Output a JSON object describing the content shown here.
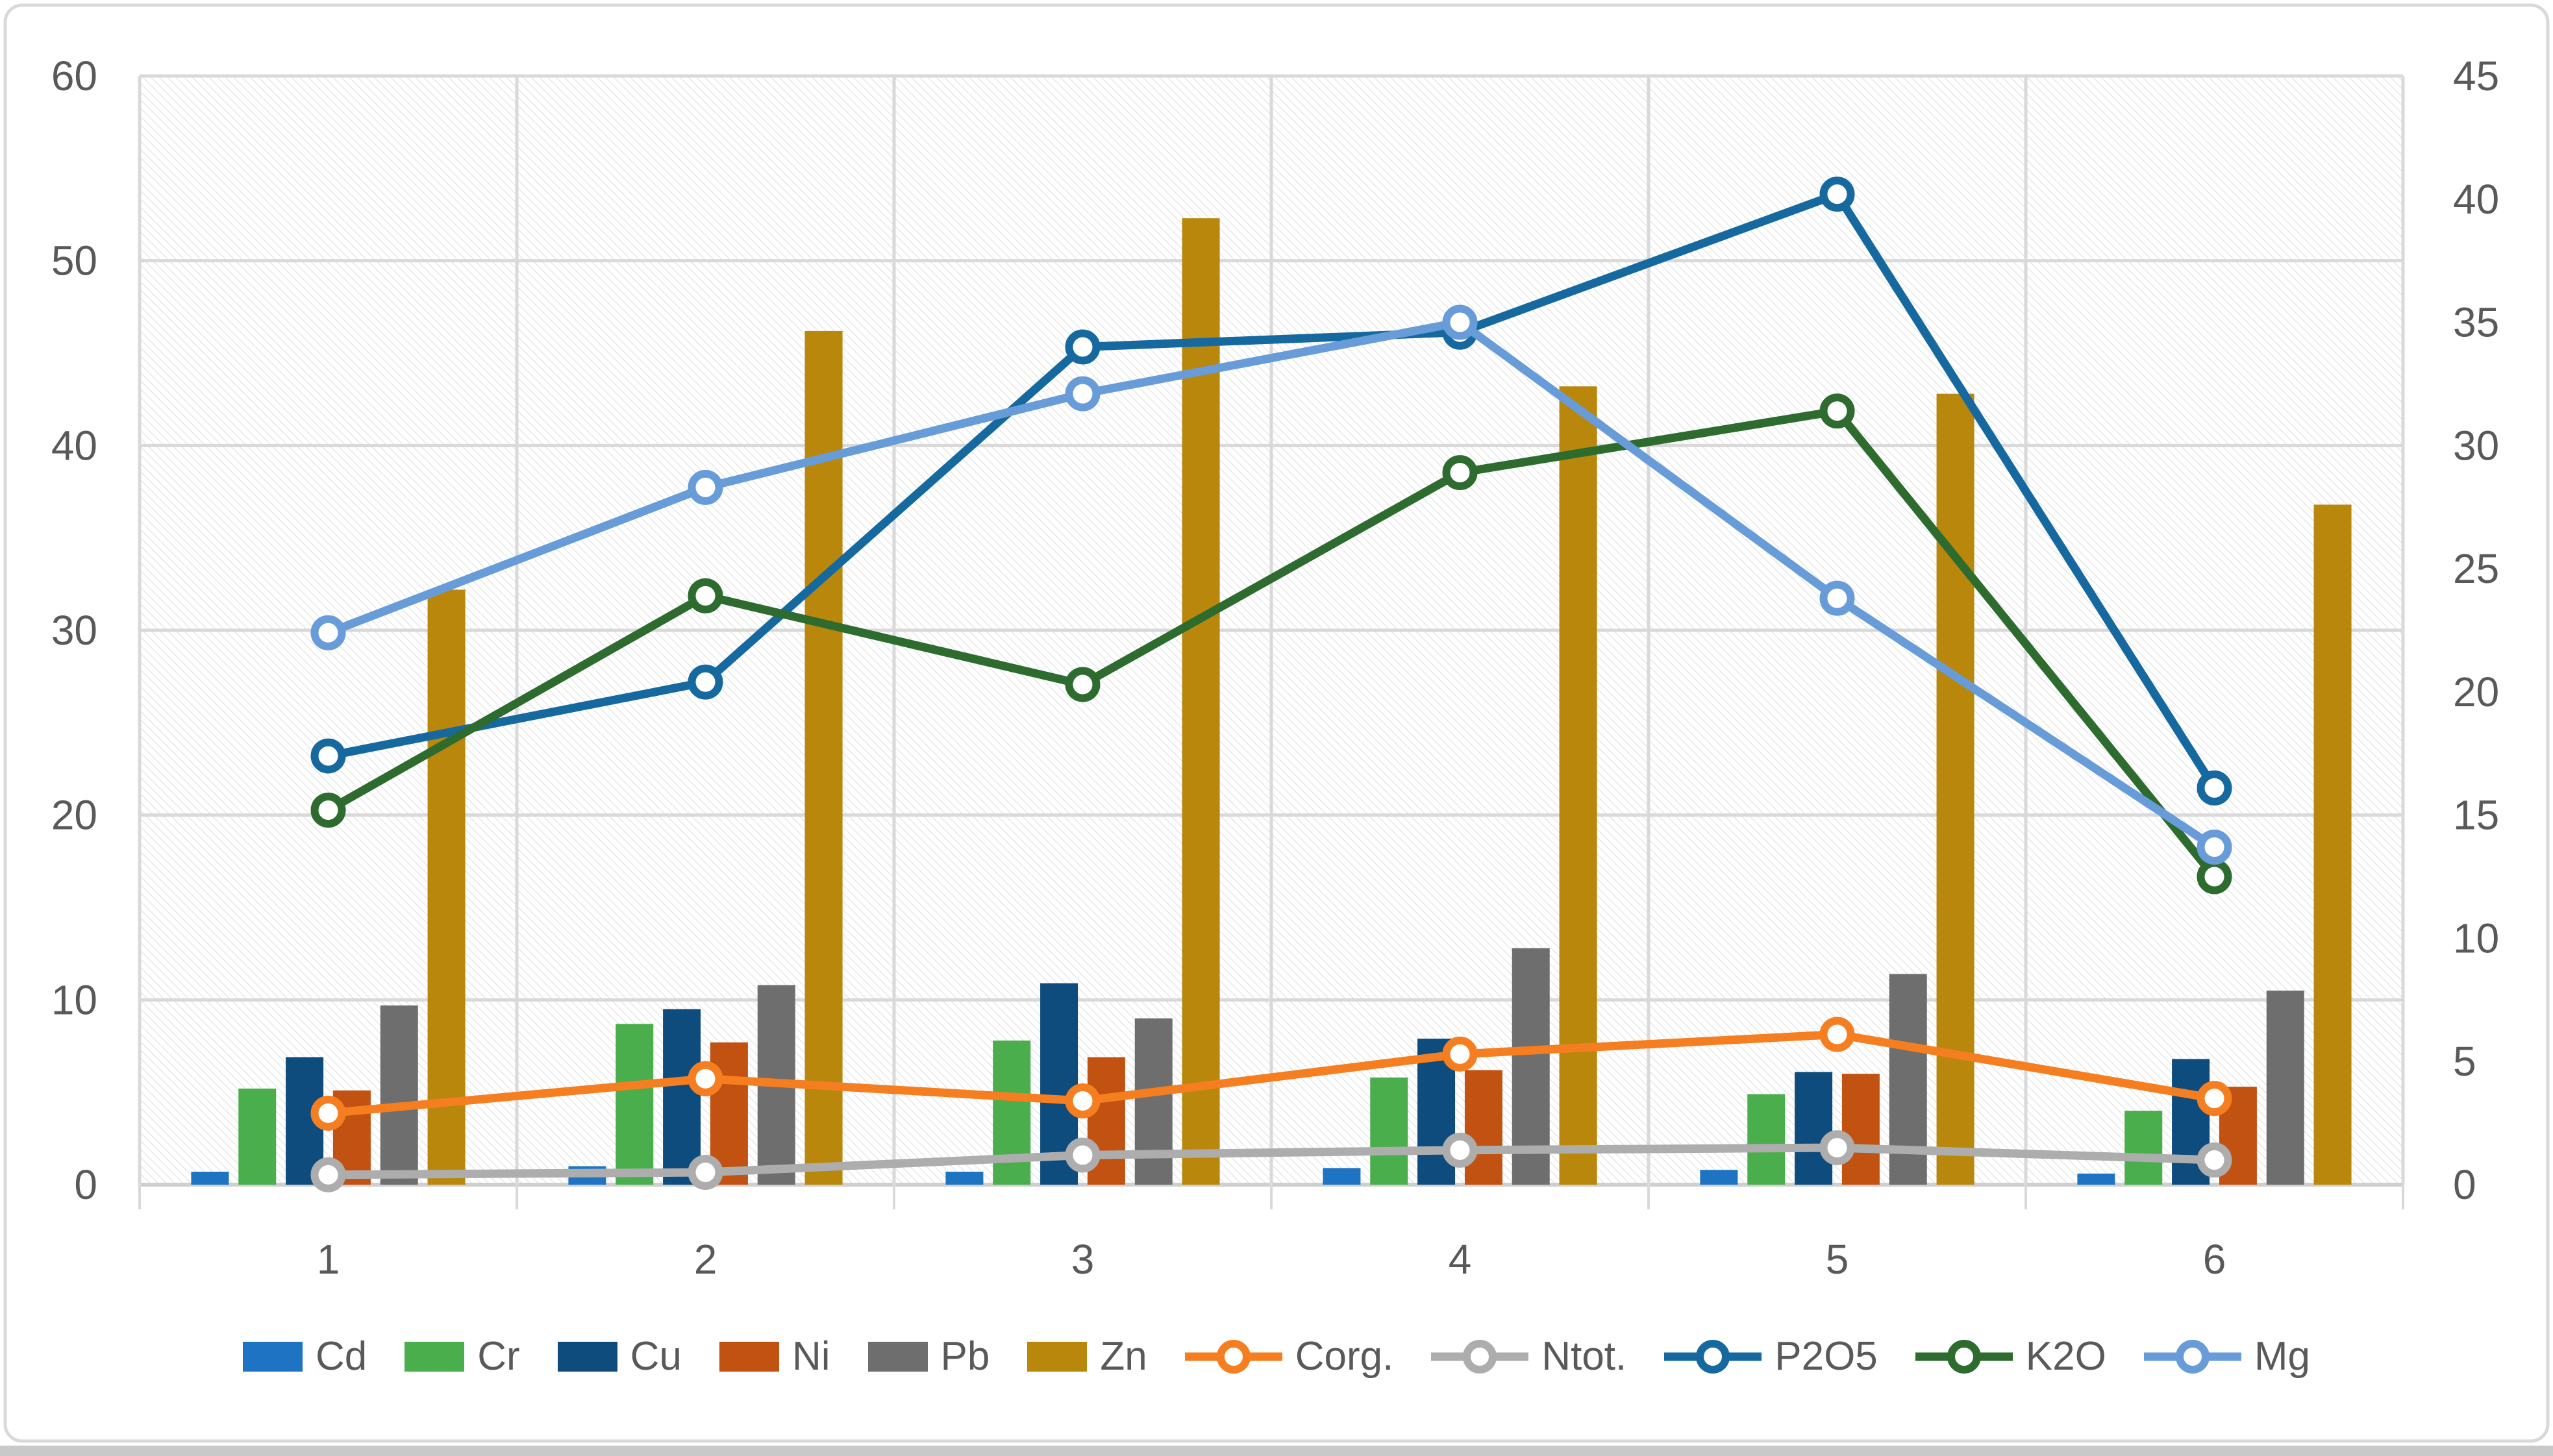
{
  "chart_data": {
    "type": "combo-bar-line",
    "categories": [
      "1",
      "2",
      "3",
      "4",
      "5",
      "6"
    ],
    "bar_series": [
      {
        "name": "Cd",
        "color": "#1E73C3",
        "values": [
          0.7,
          1.0,
          0.7,
          0.9,
          0.8,
          0.6
        ]
      },
      {
        "name": "Cr",
        "color": "#4BAE4C",
        "values": [
          5.2,
          8.7,
          7.8,
          5.8,
          4.9,
          4.0
        ]
      },
      {
        "name": "Cu",
        "color": "#0E4C7D",
        "values": [
          6.9,
          9.5,
          10.9,
          7.9,
          6.1,
          6.8
        ]
      },
      {
        "name": "Ni",
        "color": "#C25211",
        "values": [
          5.1,
          7.7,
          6.9,
          6.2,
          6.0,
          5.3
        ]
      },
      {
        "name": "Pb",
        "color": "#6E6E6E",
        "values": [
          9.7,
          10.8,
          9.0,
          12.8,
          11.4,
          10.5
        ]
      },
      {
        "name": "Zn",
        "color": "#B8870B",
        "values": [
          32.2,
          46.2,
          52.3,
          43.2,
          42.8,
          36.8
        ]
      }
    ],
    "line_series": [
      {
        "name": "Corg.",
        "color": "#F57E20",
        "values": [
          2.9,
          4.3,
          3.4,
          5.3,
          6.1,
          3.5
        ]
      },
      {
        "name": "Ntot.",
        "color": "#ADADAD",
        "values": [
          0.4,
          0.5,
          1.2,
          1.4,
          1.5,
          1.0
        ]
      },
      {
        "name": "P2O5",
        "color": "#16699F",
        "values": [
          17.4,
          20.4,
          34.0,
          34.6,
          40.2,
          16.1
        ]
      },
      {
        "name": "K2O",
        "color": "#2D6B2F",
        "values": [
          15.2,
          23.9,
          20.3,
          28.9,
          31.4,
          12.5
        ]
      },
      {
        "name": "Mg",
        "color": "#679CD9",
        "values": [
          22.4,
          28.3,
          32.1,
          35.0,
          23.8,
          13.7
        ]
      }
    ],
    "left_axis": {
      "min": 0,
      "max": 60,
      "step": 10,
      "ticks": [
        "0",
        "10",
        "20",
        "30",
        "40",
        "50",
        "60"
      ]
    },
    "right_axis": {
      "min": 0,
      "max": 45,
      "step": 5,
      "ticks": [
        "0",
        "5",
        "10",
        "15",
        "20",
        "25",
        "30",
        "35",
        "40",
        "45"
      ]
    },
    "title": "",
    "xlabel": "",
    "ylabel": "",
    "grid": true,
    "legend_position": "bottom",
    "plot_background": "diagonal-hatch"
  },
  "style": {
    "axis_label_color": "#595959",
    "gridline_color": "#D9D9D9",
    "axis_line_color": "#CFCFCF",
    "border_color": "#D9D9D9",
    "hatch_color": "#E4E4E4",
    "bottom_strip_color": "#C9C9C9"
  }
}
